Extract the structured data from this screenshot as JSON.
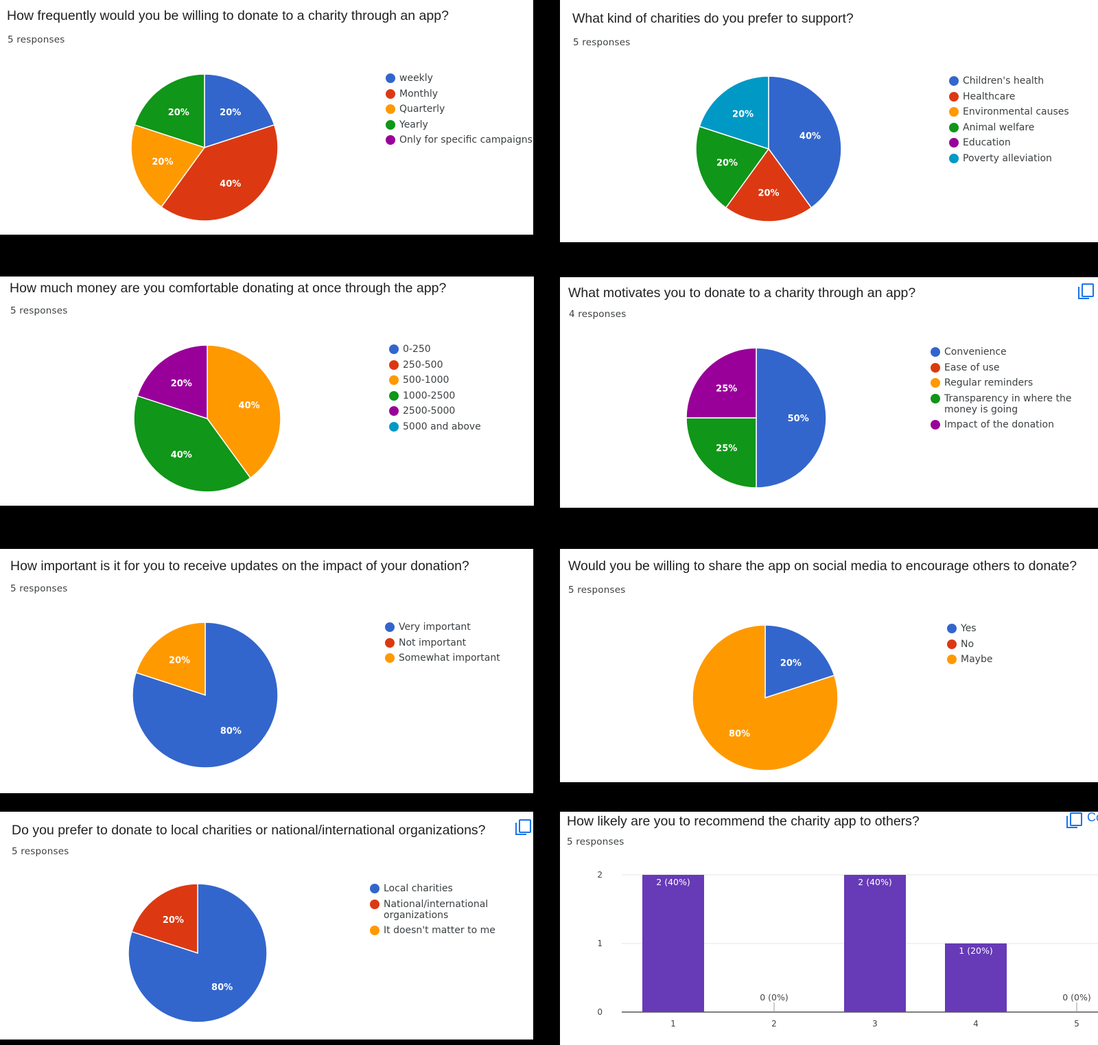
{
  "colors": {
    "blue": "#3366cc",
    "red": "#dc3912",
    "orange": "#ff9900",
    "green": "#109618",
    "purple": "#990099",
    "teal": "#0099c6",
    "bar": "#673ab7"
  },
  "chart_data": [
    {
      "id": "q1",
      "type": "pie",
      "title": "How frequently would you be willing to donate to a charity through an app?",
      "subtitle": "5 responses",
      "legend": [
        "weekly",
        "Monthly",
        "Quarterly",
        "Yearly",
        "Only for specific campaigns"
      ],
      "legend_colors": [
        "#3366cc",
        "#dc3912",
        "#ff9900",
        "#109618",
        "#990099"
      ],
      "slices": [
        {
          "label": "weekly",
          "value": 20,
          "text": "20%",
          "color": "#3366cc"
        },
        {
          "label": "Monthly",
          "value": 40,
          "text": "40%",
          "color": "#dc3912"
        },
        {
          "label": "Quarterly",
          "value": 20,
          "text": "20%",
          "color": "#ff9900"
        },
        {
          "label": "Yearly",
          "value": 20,
          "text": "20%",
          "color": "#109618"
        }
      ]
    },
    {
      "id": "q2",
      "type": "pie",
      "title": "What kind of charities do you prefer to support?",
      "subtitle": "5 responses",
      "legend": [
        "Children's health",
        "Healthcare",
        "Environmental causes",
        "Animal welfare",
        "Education",
        "Poverty alleviation"
      ],
      "legend_colors": [
        "#3366cc",
        "#dc3912",
        "#ff9900",
        "#109618",
        "#990099",
        "#0099c6"
      ],
      "slices": [
        {
          "label": "Children's health",
          "value": 40,
          "text": "40%",
          "color": "#3366cc"
        },
        {
          "label": "Healthcare",
          "value": 20,
          "text": "20%",
          "color": "#dc3912"
        },
        {
          "label": "Animal welfare",
          "value": 20,
          "text": "20%",
          "color": "#109618"
        },
        {
          "label": "Poverty alleviation",
          "value": 20,
          "text": "20%",
          "color": "#0099c6"
        }
      ]
    },
    {
      "id": "q3",
      "type": "pie",
      "title": "How much money are you comfortable donating at once through the app?",
      "subtitle": "5 responses",
      "legend": [
        "0-250",
        "250-500",
        "500-1000",
        "1000-2500",
        "2500-5000",
        "5000 and above"
      ],
      "legend_colors": [
        "#3366cc",
        "#dc3912",
        "#ff9900",
        "#109618",
        "#990099",
        "#0099c6"
      ],
      "slices": [
        {
          "label": "500-1000",
          "value": 40,
          "text": "40%",
          "color": "#ff9900"
        },
        {
          "label": "1000-2500",
          "value": 40,
          "text": "40%",
          "color": "#109618"
        },
        {
          "label": "2500-5000",
          "value": 20,
          "text": "20%",
          "color": "#990099"
        }
      ]
    },
    {
      "id": "q4",
      "type": "pie",
      "title": "What motivates you to donate to a charity through an app?",
      "subtitle": "4 responses",
      "legend": [
        "Convenience",
        "Ease of use",
        "Regular reminders",
        "Transparency in where the money is going",
        "Impact of the donation"
      ],
      "legend_colors": [
        "#3366cc",
        "#dc3912",
        "#ff9900",
        "#109618",
        "#990099"
      ],
      "slices": [
        {
          "label": "Convenience",
          "value": 50,
          "text": "50%",
          "color": "#3366cc"
        },
        {
          "label": "Transparency in where the money is going",
          "value": 25,
          "text": "25%",
          "color": "#109618"
        },
        {
          "label": "Impact of the donation",
          "value": 25,
          "text": "25%",
          "color": "#990099"
        }
      ]
    },
    {
      "id": "q5",
      "type": "pie",
      "title": "How important is it for you to receive updates on the impact of your donation?",
      "subtitle": "5 responses",
      "legend": [
        "Very important",
        "Not important",
        "Somewhat important"
      ],
      "legend_colors": [
        "#3366cc",
        "#dc3912",
        "#ff9900"
      ],
      "slices": [
        {
          "label": "Very important",
          "value": 80,
          "text": "80%",
          "color": "#3366cc"
        },
        {
          "label": "Somewhat important",
          "value": 20,
          "text": "20%",
          "color": "#ff9900"
        }
      ]
    },
    {
      "id": "q6",
      "type": "pie",
      "title": "Would you be willing to share the app on social media to encourage others to donate?",
      "subtitle": "5 responses",
      "legend": [
        "Yes",
        "No",
        "Maybe"
      ],
      "legend_colors": [
        "#3366cc",
        "#dc3912",
        "#ff9900"
      ],
      "slices": [
        {
          "label": "Yes",
          "value": 20,
          "text": "20%",
          "color": "#3366cc"
        },
        {
          "label": "Maybe",
          "value": 80,
          "text": "80%",
          "color": "#ff9900"
        }
      ]
    },
    {
      "id": "q7",
      "type": "pie",
      "title": "Do you prefer to donate to local charities or national/international organizations?",
      "subtitle": "5 responses",
      "legend": [
        "Local charities",
        "National/international organizations",
        "It doesn't matter to me"
      ],
      "legend_colors": [
        "#3366cc",
        "#dc3912",
        "#ff9900"
      ],
      "slices": [
        {
          "label": "Local charities",
          "value": 80,
          "text": "80%",
          "color": "#3366cc"
        },
        {
          "label": "National/international organizations",
          "value": 20,
          "text": "20%",
          "color": "#dc3912"
        }
      ]
    },
    {
      "id": "q8",
      "type": "bar",
      "title": "How likely are you to recommend the charity app to others?",
      "subtitle": "5 responses",
      "categories": [
        "1",
        "2",
        "3",
        "4",
        "5"
      ],
      "values": [
        2,
        0,
        2,
        1,
        0
      ],
      "data_labels": [
        "2 (40%)",
        "0 (0%)",
        "2 (40%)",
        "1 (20%)",
        "0 (0%)"
      ],
      "y_ticks": [
        "0",
        "1",
        "2"
      ],
      "ylim": [
        0,
        2
      ],
      "grid": true
    }
  ],
  "copy_extra_text": "Co"
}
